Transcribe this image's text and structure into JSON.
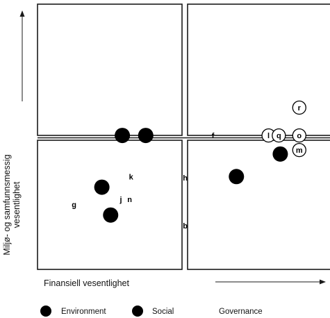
{
  "chart_data": {
    "type": "scatter",
    "xlabel": "Finansiell vesentlighet",
    "ylabel_lines": [
      "Miljø- og samfunnsmessig",
      "vesentlighet"
    ],
    "xlim": [
      0,
      10
    ],
    "ylim": [
      0,
      10
    ],
    "grid": false,
    "legend_position": "bottom-left",
    "legend": [
      {
        "label": "Environment",
        "marker": "dot"
      },
      {
        "label": "Social",
        "marker": "dot"
      },
      {
        "label": "Governance",
        "marker": "none"
      }
    ],
    "points": [
      {
        "x": 2.9,
        "y": 5.05,
        "style": "dot",
        "label": ""
      },
      {
        "x": 3.7,
        "y": 5.05,
        "style": "dot",
        "label": ""
      },
      {
        "x": 2.2,
        "y": 3.1,
        "style": "dot",
        "label": ""
      },
      {
        "x": 2.5,
        "y": 2.05,
        "style": "dot",
        "label": ""
      },
      {
        "x": 6.8,
        "y": 3.5,
        "style": "dot",
        "label": ""
      },
      {
        "x": 8.3,
        "y": 4.35,
        "style": "dot",
        "label": ""
      },
      {
        "x": 3.2,
        "y": 3.5,
        "style": "text",
        "label": "k"
      },
      {
        "x": 2.85,
        "y": 2.65,
        "style": "text",
        "label": "j"
      },
      {
        "x": 3.15,
        "y": 2.65,
        "style": "text",
        "label": "n"
      },
      {
        "x": 1.25,
        "y": 2.45,
        "style": "text",
        "label": "g"
      },
      {
        "x": 5.05,
        "y": 3.45,
        "style": "text",
        "label": "h"
      },
      {
        "x": 5.05,
        "y": 1.65,
        "style": "text",
        "label": "b"
      },
      {
        "x": 6.0,
        "y": 5.05,
        "style": "text",
        "label": "f"
      },
      {
        "x": 7.9,
        "y": 5.05,
        "style": "circle",
        "label": "l"
      },
      {
        "x": 8.25,
        "y": 5.05,
        "style": "circle",
        "label": "q"
      },
      {
        "x": 8.95,
        "y": 6.1,
        "style": "circle",
        "label": "r"
      },
      {
        "x": 8.95,
        "y": 5.05,
        "style": "circle",
        "label": "o"
      },
      {
        "x": 8.95,
        "y": 4.5,
        "style": "circle",
        "label": "m"
      }
    ]
  }
}
